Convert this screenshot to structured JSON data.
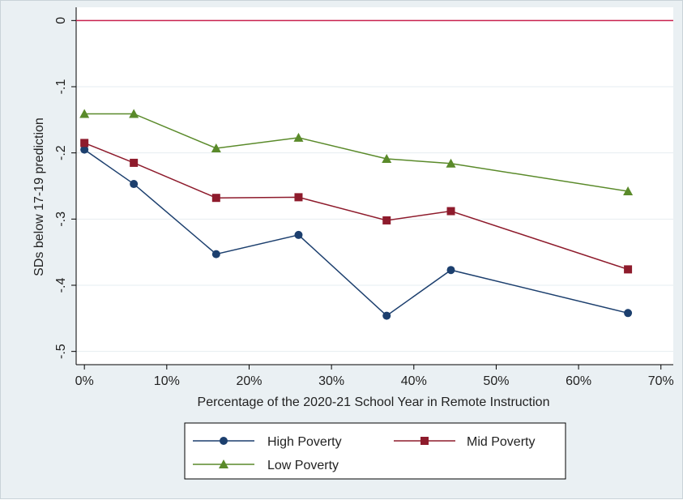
{
  "chart_data": {
    "type": "line",
    "xlabel": "Percentage of the 2020-21 School Year in Remote Instruction",
    "ylabel": "SDs below 17-19 prediction",
    "xlim": [
      -0.01,
      0.715
    ],
    "ylim": [
      -0.52,
      0.02
    ],
    "x_ticks": [
      0,
      0.1,
      0.2,
      0.3,
      0.4,
      0.5,
      0.6,
      0.7
    ],
    "x_tick_labels": [
      "0%",
      "10%",
      "20%",
      "30%",
      "40%",
      "50%",
      "60%",
      "70%"
    ],
    "y_ticks": [
      0,
      -0.1,
      -0.2,
      -0.3,
      -0.4,
      -0.5
    ],
    "y_tick_labels": [
      "0",
      "-.1",
      "-.2",
      "-.3",
      "-.4",
      "-.5"
    ],
    "reference_line": {
      "y": 0,
      "color": "#c8204e"
    },
    "grid": true,
    "legend_position": "bottom",
    "series": [
      {
        "name": "High Poverty",
        "color": "#1c3f6e",
        "marker": "circle",
        "x": [
          0.0,
          0.06,
          0.16,
          0.26,
          0.367,
          0.445,
          0.66
        ],
        "y": [
          -0.195,
          -0.247,
          -0.353,
          -0.324,
          -0.446,
          -0.377,
          -0.442
        ]
      },
      {
        "name": "Mid Poverty",
        "color": "#8e1b2c",
        "marker": "square",
        "x": [
          0.0,
          0.06,
          0.16,
          0.26,
          0.367,
          0.445,
          0.66
        ],
        "y": [
          -0.185,
          -0.215,
          -0.268,
          -0.267,
          -0.302,
          -0.288,
          -0.376
        ]
      },
      {
        "name": "Low Poverty",
        "color": "#5a8a2a",
        "marker": "triangle",
        "x": [
          0.0,
          0.06,
          0.16,
          0.26,
          0.367,
          0.445,
          0.66
        ],
        "y": [
          -0.141,
          -0.141,
          -0.193,
          -0.177,
          -0.209,
          -0.216,
          -0.258
        ]
      }
    ]
  }
}
